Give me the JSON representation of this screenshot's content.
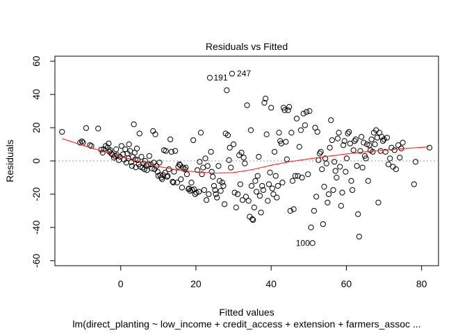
{
  "chart_data": {
    "type": "scatter",
    "title": "Residuals vs Fitted",
    "xlabel": "Fitted values",
    "ylabel": "Residuals",
    "subtitle": "lm(direct_planting ~ low_income + credit_access + extension + farmers_assoc ...",
    "xlim": [
      -17.5,
      84.5
    ],
    "ylim": [
      -63,
      63
    ],
    "x_ticks": [
      0,
      20,
      40,
      60,
      80
    ],
    "y_ticks": [
      -60,
      -40,
      -20,
      0,
      20,
      40,
      60
    ],
    "zero_reference_line": "dotted grey at 0",
    "grid": false,
    "legend": "none",
    "colors": {
      "points": "#000000",
      "smooth": "#ff2020",
      "reference": "#9a9a9a"
    },
    "labeled_points": [
      {
        "label": "191",
        "x": 23.8,
        "y": 50
      },
      {
        "label": "247",
        "x": 30.0,
        "y": 52.5
      },
      {
        "label": "100",
        "x": 51.2,
        "y": -49.4
      }
    ],
    "points": [
      [
        -15.6,
        17.5
      ],
      [
        -10.8,
        11.0
      ],
      [
        -10.3,
        11.8
      ],
      [
        -10.0,
        11.0
      ],
      [
        -9.2,
        19.8
      ],
      [
        -8.2,
        9.5
      ],
      [
        -7.8,
        9.0
      ],
      [
        -6.0,
        19.5
      ],
      [
        -5.2,
        6.8
      ],
      [
        -4.8,
        5.0
      ],
      [
        -4.5,
        7.0
      ],
      [
        -4.0,
        9.0
      ],
      [
        -3.5,
        8.0
      ],
      [
        -3.2,
        10.5
      ],
      [
        -3.0,
        5.5
      ],
      [
        -2.8,
        6.5
      ],
      [
        -2.5,
        4.5
      ],
      [
        -2.2,
        3.8
      ],
      [
        -1.8,
        2.0
      ],
      [
        -1.5,
        3.0
      ],
      [
        -1.2,
        7.0
      ],
      [
        -1.0,
        3.5
      ],
      [
        -0.5,
        0.5
      ],
      [
        -0.2,
        2.5
      ],
      [
        0.2,
        9.0
      ],
      [
        0.6,
        4.0
      ],
      [
        0.9,
        0.8
      ],
      [
        1.2,
        7.0
      ],
      [
        1.5,
        -1.0
      ],
      [
        1.8,
        4.5
      ],
      [
        2.0,
        1.5
      ],
      [
        2.2,
        10.0
      ],
      [
        2.5,
        6.0
      ],
      [
        2.8,
        -0.8
      ],
      [
        3.0,
        -3.0
      ],
      [
        3.2,
        2.5
      ],
      [
        3.5,
        22.0
      ],
      [
        3.7,
        5.0
      ],
      [
        3.9,
        1.0
      ],
      [
        4.0,
        -3.8
      ],
      [
        4.3,
        7.5
      ],
      [
        4.5,
        0.5
      ],
      [
        4.8,
        -2.0
      ],
      [
        5.0,
        16.5
      ],
      [
        5.2,
        -3.5
      ],
      [
        5.5,
        2.5
      ],
      [
        5.8,
        -4.0
      ],
      [
        6.0,
        -1.5
      ],
      [
        6.3,
        -5.0
      ],
      [
        6.5,
        0.0
      ],
      [
        6.8,
        -3.0
      ],
      [
        7.0,
        -5.5
      ],
      [
        7.3,
        -2.0
      ],
      [
        7.6,
        3.0
      ],
      [
        8.0,
        -2.0
      ],
      [
        8.3,
        -4.5
      ],
      [
        8.6,
        18.0
      ],
      [
        8.8,
        -1.0
      ],
      [
        9.0,
        -5.0
      ],
      [
        9.2,
        16.0
      ],
      [
        9.5,
        -3.0
      ],
      [
        9.8,
        -6.5
      ],
      [
        10.0,
        -9.0
      ],
      [
        10.3,
        -1.0
      ],
      [
        10.5,
        -8.5
      ],
      [
        10.8,
        -10.0
      ],
      [
        11.0,
        -11.0
      ],
      [
        11.3,
        -8.5
      ],
      [
        11.5,
        6.5
      ],
      [
        11.8,
        -7.0
      ],
      [
        12.0,
        6.0
      ],
      [
        12.3,
        -9.5
      ],
      [
        12.5,
        -9.0
      ],
      [
        12.8,
        -5.0
      ],
      [
        13.2,
        13.0
      ],
      [
        13.5,
        5.5
      ],
      [
        13.8,
        -12.5
      ],
      [
        14.0,
        -13.0
      ],
      [
        14.2,
        -6.5
      ],
      [
        14.5,
        6.0
      ],
      [
        15.0,
        -13.0
      ],
      [
        15.3,
        -3.5
      ],
      [
        15.6,
        -2.0
      ],
      [
        15.8,
        -2.5
      ],
      [
        16.0,
        -11.0
      ],
      [
        16.3,
        -16.0
      ],
      [
        16.6,
        -4.0
      ],
      [
        17.0,
        -5.0
      ],
      [
        17.3,
        -4.0
      ],
      [
        17.6,
        -8.0
      ],
      [
        18.0,
        -17.0
      ],
      [
        18.2,
        -16.5
      ],
      [
        18.5,
        -18.0
      ],
      [
        18.8,
        -13.0
      ],
      [
        19.0,
        -17.5
      ],
      [
        19.3,
        12.5
      ],
      [
        19.5,
        -17.0
      ],
      [
        19.8,
        -20.0
      ],
      [
        20.1,
        -19.0
      ],
      [
        20.4,
        -5.5
      ],
      [
        20.8,
        -18.5
      ],
      [
        21.0,
        -0.5
      ],
      [
        21.3,
        17.0
      ],
      [
        21.6,
        -8.0
      ],
      [
        21.9,
        -4.0
      ],
      [
        22.2,
        -17.5
      ],
      [
        22.5,
        1.5
      ],
      [
        22.8,
        -23.5
      ],
      [
        23.1,
        -3.0
      ],
      [
        23.4,
        -20.0
      ],
      [
        23.7,
        50.0
      ],
      [
        24.0,
        5.5
      ],
      [
        24.2,
        -6.5
      ],
      [
        24.5,
        -9.5
      ],
      [
        24.8,
        -15.0
      ],
      [
        25.1,
        -17.5
      ],
      [
        25.3,
        -20.0
      ],
      [
        25.6,
        -22.0
      ],
      [
        26.0,
        -3.0
      ],
      [
        26.3,
        -12.0
      ],
      [
        26.6,
        -18.0
      ],
      [
        27.0,
        -13.0
      ],
      [
        27.3,
        -15.0
      ],
      [
        27.6,
        -26.0
      ],
      [
        27.9,
        16.5
      ],
      [
        28.2,
        42.5
      ],
      [
        28.5,
        15.5
      ],
      [
        28.8,
        0.5
      ],
      [
        29.0,
        8.0
      ],
      [
        29.3,
        -4.0
      ],
      [
        29.6,
        52.5
      ],
      [
        30.0,
        10.0
      ],
      [
        30.3,
        -19.0
      ],
      [
        30.7,
        -28.0
      ],
      [
        31.1,
        -20.0
      ],
      [
        31.5,
        3.5
      ],
      [
        31.8,
        -14.0
      ],
      [
        32.1,
        5.0
      ],
      [
        32.4,
        -23.5
      ],
      [
        32.7,
        2.0
      ],
      [
        33.0,
        -1.5
      ],
      [
        33.3,
        -21.5
      ],
      [
        33.6,
        33.5
      ],
      [
        34.0,
        -24.0
      ],
      [
        34.3,
        -33.5
      ],
      [
        34.6,
        18.5
      ],
      [
        34.8,
        -15.0
      ],
      [
        35.0,
        -35.0
      ],
      [
        35.2,
        -35.5
      ],
      [
        35.5,
        -28.0
      ],
      [
        35.8,
        -12.0
      ],
      [
        36.1,
        -18.5
      ],
      [
        36.4,
        -9.0
      ],
      [
        36.7,
        2.5
      ],
      [
        37.0,
        -21.0
      ],
      [
        37.3,
        -31.0
      ],
      [
        37.6,
        -15.0
      ],
      [
        37.9,
        -17.5
      ],
      [
        38.2,
        35.0
      ],
      [
        38.5,
        37.5
      ],
      [
        38.8,
        16.0
      ],
      [
        39.1,
        -24.0
      ],
      [
        39.4,
        -14.0
      ],
      [
        39.7,
        -7.0
      ],
      [
        40.0,
        32.0
      ],
      [
        40.3,
        -16.5
      ],
      [
        40.6,
        -20.0
      ],
      [
        40.9,
        5.5
      ],
      [
        41.2,
        -9.0
      ],
      [
        41.5,
        -22.0
      ],
      [
        41.8,
        -15.0
      ],
      [
        42.1,
        17.0
      ],
      [
        42.4,
        12.0
      ],
      [
        42.7,
        10.5
      ],
      [
        43.0,
        -13.0
      ],
      [
        43.3,
        32.0
      ],
      [
        43.6,
        30.5
      ],
      [
        43.9,
        11.5
      ],
      [
        44.2,
        1.0
      ],
      [
        44.5,
        30.5
      ],
      [
        44.8,
        32.5
      ],
      [
        45.1,
        -30.0
      ],
      [
        45.4,
        17.0
      ],
      [
        45.7,
        -12.0
      ],
      [
        46.0,
        -29.0
      ],
      [
        46.4,
        -9.0
      ],
      [
        46.8,
        25.5
      ],
      [
        47.1,
        -9.0
      ],
      [
        47.5,
        8.5
      ],
      [
        47.9,
        18.5
      ],
      [
        48.2,
        -10.0
      ],
      [
        48.6,
        28.5
      ],
      [
        49.0,
        21.5
      ],
      [
        49.4,
        29.5
      ],
      [
        49.8,
        -8.0
      ],
      [
        50.2,
        30.0
      ],
      [
        50.6,
        -40.0
      ],
      [
        51.0,
        -49.4
      ],
      [
        51.4,
        -30.0
      ],
      [
        51.7,
        20.0
      ],
      [
        52.0,
        -21.5
      ],
      [
        52.3,
        17.5
      ],
      [
        52.6,
        0.5
      ],
      [
        52.9,
        4.5
      ],
      [
        53.2,
        5.5
      ],
      [
        53.5,
        -5.0
      ],
      [
        53.8,
        -38.0
      ],
      [
        54.1,
        -15.5
      ],
      [
        54.4,
        1.5
      ],
      [
        54.7,
        -1.5
      ],
      [
        55.0,
        -25.0
      ],
      [
        55.3,
        -20.0
      ],
      [
        55.6,
        8.0
      ],
      [
        55.9,
        24.5
      ],
      [
        56.2,
        12.5
      ],
      [
        56.5,
        -17.5
      ],
      [
        56.8,
        -0.5
      ],
      [
        57.1,
        -6.0
      ],
      [
        57.4,
        -10.0
      ],
      [
        57.7,
        13.5
      ],
      [
        58.0,
        17.0
      ],
      [
        58.3,
        -3.5
      ],
      [
        58.6,
        -27.0
      ],
      [
        58.9,
        -19.0
      ],
      [
        59.2,
        9.5
      ],
      [
        59.5,
        12.0
      ],
      [
        59.8,
        -6.5
      ],
      [
        60.1,
        1.5
      ],
      [
        60.4,
        16.5
      ],
      [
        60.7,
        17.5
      ],
      [
        61.0,
        10.5
      ],
      [
        61.3,
        -12.0
      ],
      [
        61.6,
        -17.5
      ],
      [
        61.9,
        6.5
      ],
      [
        62.2,
        12.0
      ],
      [
        62.5,
        13.0
      ],
      [
        62.8,
        -3.0
      ],
      [
        63.1,
        -32.0
      ],
      [
        63.4,
        -45.5
      ],
      [
        63.7,
        6.0
      ],
      [
        64.0,
        14.5
      ],
      [
        64.3,
        -4.0
      ],
      [
        64.6,
        11.0
      ],
      [
        64.9,
        3.0
      ],
      [
        65.2,
        1.5
      ],
      [
        65.5,
        10.0
      ],
      [
        65.8,
        -12.0
      ],
      [
        66.1,
        9.5
      ],
      [
        66.4,
        6.5
      ],
      [
        66.7,
        13.0
      ],
      [
        67.0,
        5.5
      ],
      [
        67.3,
        17.0
      ],
      [
        67.6,
        10.0
      ],
      [
        67.9,
        18.5
      ],
      [
        68.2,
        14.0
      ],
      [
        68.5,
        -25.0
      ],
      [
        68.8,
        17.0
      ],
      [
        69.1,
        6.0
      ],
      [
        69.4,
        14.5
      ],
      [
        69.7,
        12.0
      ],
      [
        70.0,
        13.0
      ],
      [
        70.4,
        5.5
      ],
      [
        70.8,
        14.0
      ],
      [
        71.2,
        -2.0
      ],
      [
        71.6,
        1.5
      ],
      [
        72.0,
        8.0
      ],
      [
        72.4,
        -3.5
      ],
      [
        72.8,
        6.5
      ],
      [
        73.2,
        -5.0
      ],
      [
        73.8,
        9.5
      ],
      [
        74.2,
        2.0
      ],
      [
        74.6,
        7.5
      ],
      [
        75.0,
        11.0
      ],
      [
        78.0,
        -14.0
      ],
      [
        78.4,
        -0.5
      ],
      [
        82.1,
        8.0
      ]
    ],
    "smooth_line": {
      "x": [
        -15.6,
        -10,
        -5,
        0,
        5,
        10,
        15,
        20,
        25,
        30,
        35,
        40,
        45,
        50,
        55,
        60,
        65,
        70,
        75,
        82
      ],
      "y": [
        13.5,
        9.3,
        6.0,
        2.6,
        -0.4,
        -3.3,
        -5.4,
        -6.6,
        -7.3,
        -7.0,
        -5.2,
        -2.6,
        -0.4,
        1.2,
        2.8,
        4.2,
        5.5,
        6.5,
        7.4,
        8.5
      ]
    }
  }
}
